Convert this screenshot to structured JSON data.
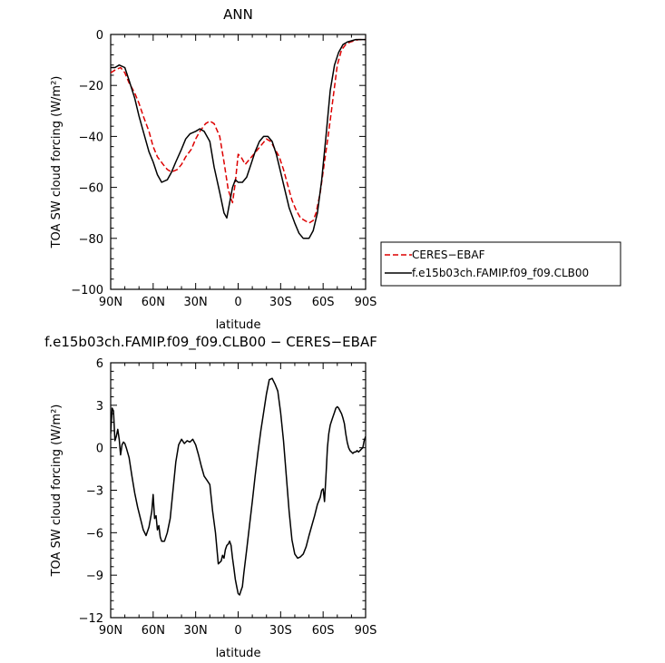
{
  "chart_data": [
    {
      "type": "line",
      "title": "ANN",
      "xlabel": "latitude",
      "ylabel": "TOA SW cloud forcing (W/m²)",
      "xlim": [
        90,
        -90
      ],
      "ylim": [
        -100,
        0
      ],
      "x_tick_values": [
        90,
        60,
        30,
        0,
        -30,
        -60,
        -90
      ],
      "x_tick_labels": [
        "90N",
        "60N",
        "30N",
        "0",
        "30S",
        "60S",
        "90S"
      ],
      "y_tick_values": [
        0,
        -20,
        -40,
        -60,
        -80,
        -100
      ],
      "y_tick_labels": [
        "0",
        "−20",
        "−40",
        "−60",
        "−80",
        "−100"
      ],
      "legend_position": "right",
      "series": [
        {
          "name": "CERES−EBAF",
          "color": "#dd0000",
          "dash": "dashed",
          "x": [
            90,
            87,
            83,
            80,
            77,
            73,
            70,
            67,
            63,
            60,
            57,
            53,
            50,
            47,
            43,
            40,
            37,
            33,
            30,
            27,
            23,
            20,
            17,
            13,
            10,
            7,
            4,
            2,
            0,
            -2,
            -5,
            -8,
            -11,
            -14,
            -17,
            -20,
            -23,
            -26,
            -29,
            -32,
            -35,
            -38,
            -41,
            -44,
            -47,
            -50,
            -53,
            -55,
            -58,
            -61,
            -64,
            -67,
            -70,
            -73,
            -76,
            -79,
            -82,
            -85,
            -88,
            -90
          ],
          "y": [
            -15,
            -14,
            -13,
            -15,
            -19,
            -23,
            -27,
            -32,
            -38,
            -44,
            -48,
            -51,
            -53,
            -54,
            -53,
            -51,
            -48,
            -45,
            -41,
            -38,
            -35,
            -34,
            -35,
            -40,
            -50,
            -61,
            -66,
            -58,
            -47,
            -48,
            -51,
            -49,
            -47,
            -45,
            -43,
            -41,
            -42,
            -45,
            -48,
            -53,
            -59,
            -65,
            -69,
            -72,
            -73,
            -74,
            -73,
            -70,
            -62,
            -50,
            -38,
            -25,
            -12,
            -6,
            -4,
            -3,
            -2.5,
            -2,
            -2,
            -2
          ]
        },
        {
          "name": "f.e15b03ch.FAMIP.f09_f09.CLB00",
          "color": "#000000",
          "dash": "solid",
          "x": [
            90,
            87,
            84,
            80,
            77,
            73,
            70,
            67,
            63,
            60,
            57,
            54,
            50,
            47,
            44,
            40,
            37,
            34,
            30,
            27,
            24,
            20,
            17,
            13,
            10,
            8,
            6,
            4,
            2,
            0,
            -3,
            -6,
            -9,
            -12,
            -15,
            -18,
            -21,
            -24,
            -27,
            -30,
            -33,
            -36,
            -40,
            -43,
            -46,
            -50,
            -53,
            -56,
            -59,
            -62,
            -65,
            -68,
            -71,
            -74,
            -77,
            -80,
            -83,
            -86,
            -89,
            -90
          ],
          "y": [
            -13,
            -13,
            -12,
            -13,
            -18,
            -25,
            -32,
            -38,
            -46,
            -50,
            -55,
            -58,
            -57,
            -54,
            -50,
            -45,
            -41,
            -39,
            -38,
            -37,
            -38,
            -42,
            -52,
            -62,
            -70,
            -72,
            -66,
            -60,
            -57,
            -58,
            -58,
            -56,
            -51,
            -46,
            -42,
            -40,
            -40,
            -42,
            -47,
            -54,
            -61,
            -68,
            -74,
            -78,
            -80,
            -80,
            -77,
            -70,
            -57,
            -40,
            -22,
            -12,
            -7,
            -4,
            -3,
            -2.5,
            -2,
            -2,
            -2,
            -2
          ]
        }
      ]
    },
    {
      "type": "line",
      "title": "f.e15b03ch.FAMIP.f09_f09.CLB00 − CERES−EBAF",
      "xlabel": "latitude",
      "ylabel": "TOA SW cloud forcing (W/m²)",
      "xlim": [
        90,
        -90
      ],
      "ylim": [
        -12,
        6
      ],
      "x_tick_values": [
        90,
        60,
        30,
        0,
        -30,
        -60,
        -90
      ],
      "x_tick_labels": [
        "90N",
        "60N",
        "30N",
        "0",
        "30S",
        "60S",
        "90S"
      ],
      "y_tick_values": [
        6,
        3,
        0,
        -3,
        -6,
        -9,
        -12
      ],
      "y_tick_labels": [
        "6",
        "3",
        "0",
        "−3",
        "−6",
        "−9",
        "−12"
      ],
      "series": [
        {
          "color": "#000000",
          "x": [
            90,
            89,
            88,
            87,
            86,
            85,
            84,
            83,
            82,
            81,
            80,
            79,
            77,
            75,
            73,
            71,
            69,
            67,
            65,
            63,
            61,
            60,
            59,
            58,
            57,
            56,
            55,
            54,
            52,
            50,
            48,
            46,
            44,
            42,
            40,
            38,
            36,
            34,
            32,
            30,
            28,
            26,
            24,
            22,
            20,
            18,
            16,
            14,
            12,
            11,
            10,
            9,
            8,
            7,
            6,
            5,
            4,
            3,
            2,
            1,
            0,
            -1,
            -2,
            -3,
            -4,
            -6,
            -8,
            -10,
            -12,
            -14,
            -16,
            -18,
            -20,
            -22,
            -24,
            -26,
            -28,
            -30,
            -32,
            -34,
            -36,
            -38,
            -40,
            -42,
            -44,
            -46,
            -48,
            -50,
            -52,
            -54,
            -56,
            -58,
            -59,
            -60,
            -61,
            -62,
            -63,
            -64,
            -65,
            -66,
            -67,
            -68,
            -69,
            -70,
            -71,
            -72,
            -73,
            -74,
            -75,
            -76,
            -77,
            -78,
            -79,
            -80,
            -81,
            -82,
            -83,
            -84,
            -85,
            -86,
            -87,
            -88,
            -89,
            -90
          ],
          "y": [
            1.0,
            2.8,
            2.6,
            0.5,
            0.8,
            1.3,
            0.6,
            -0.5,
            0.2,
            0.4,
            0.3,
            0.0,
            -0.7,
            -2.0,
            -3.2,
            -4.2,
            -5.0,
            -5.8,
            -6.2,
            -5.6,
            -4.5,
            -3.3,
            -5.0,
            -4.8,
            -5.8,
            -5.5,
            -6.3,
            -6.6,
            -6.6,
            -6.0,
            -5.0,
            -3.0,
            -1.0,
            0.2,
            0.6,
            0.3,
            0.5,
            0.4,
            0.6,
            0.2,
            -0.5,
            -1.3,
            -2.0,
            -2.3,
            -2.6,
            -4.5,
            -6.0,
            -8.2,
            -8.0,
            -7.6,
            -7.8,
            -7.2,
            -6.9,
            -6.8,
            -6.6,
            -6.9,
            -7.8,
            -8.5,
            -9.3,
            -9.8,
            -10.3,
            -10.4,
            -10.1,
            -9.8,
            -8.9,
            -7.2,
            -5.5,
            -3.8,
            -2.0,
            -0.3,
            1.2,
            2.5,
            3.8,
            4.8,
            4.9,
            4.5,
            4.0,
            2.5,
            0.5,
            -2.0,
            -4.5,
            -6.5,
            -7.5,
            -7.8,
            -7.7,
            -7.5,
            -7.0,
            -6.2,
            -5.5,
            -4.8,
            -4.0,
            -3.5,
            -3.0,
            -2.9,
            -3.8,
            -2.0,
            0.0,
            1.0,
            1.6,
            1.9,
            2.2,
            2.5,
            2.8,
            2.9,
            2.8,
            2.6,
            2.4,
            2.1,
            1.7,
            1.0,
            0.4,
            0.0,
            -0.2,
            -0.3,
            -0.4,
            -0.3,
            -0.3,
            -0.2,
            -0.3,
            -0.2,
            -0.1,
            0.0,
            0.5,
            0.8
          ]
        }
      ]
    }
  ]
}
